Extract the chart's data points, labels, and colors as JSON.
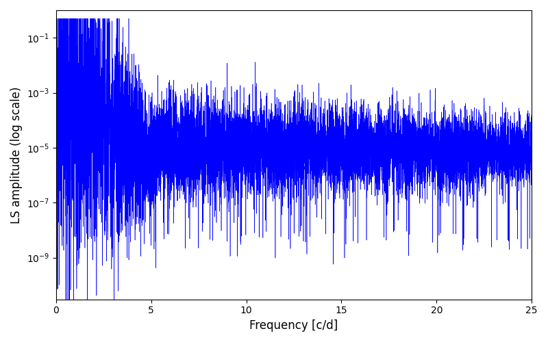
{
  "xlabel": "Frequency [c/d]",
  "ylabel": "LS amplitude (log scale)",
  "line_color": "#0000FF",
  "xlim": [
    0,
    25
  ],
  "ylim": [
    3e-11,
    1.0
  ],
  "yticks": [
    1e-09,
    1e-07,
    1e-05,
    0.001,
    0.1
  ],
  "xticks": [
    0,
    5,
    10,
    15,
    20,
    25
  ],
  "n_points": 10000,
  "seed": 12345,
  "figsize": [
    8.0,
    5.0
  ],
  "dpi": 100
}
